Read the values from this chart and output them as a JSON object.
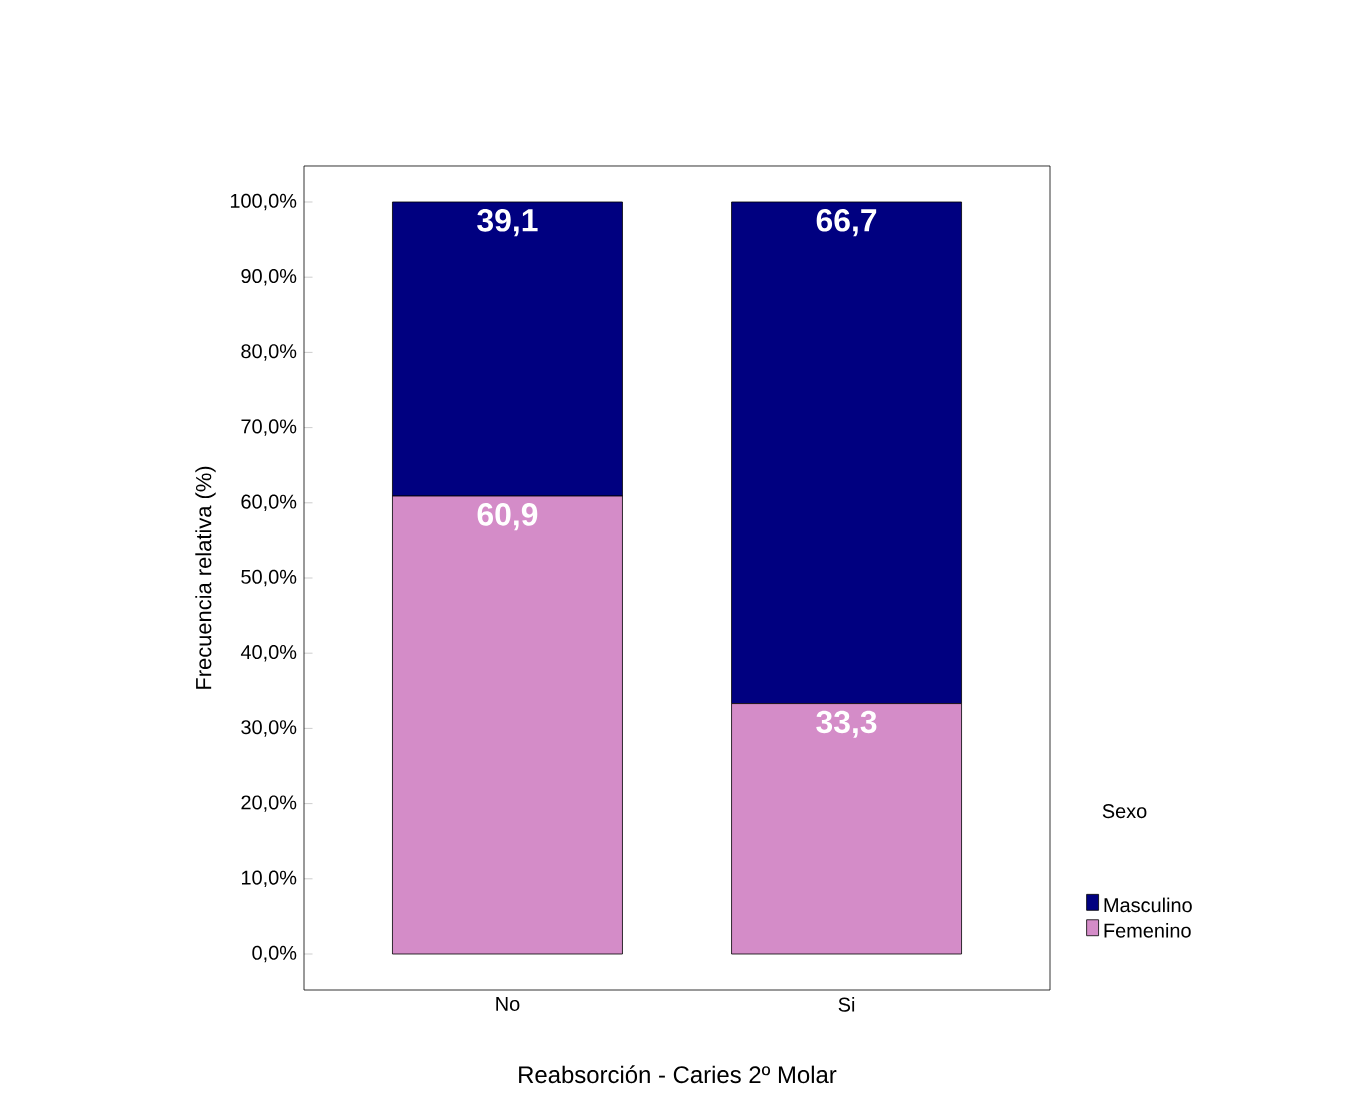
{
  "chart_data": {
    "type": "bar",
    "stacked": true,
    "xlabel": "Reabsorción - Caries 2º Molar",
    "ylabel": "Frecuencia relativa (%)",
    "legend_title": "Sexo",
    "legend": "right",
    "categories": [
      "No",
      "Si"
    ],
    "series": [
      {
        "name": "Femenino",
        "color": "#d48cc8",
        "values": [
          60.9,
          33.3
        ],
        "value_labels": [
          "60,9",
          "33,3"
        ]
      },
      {
        "name": "Masculino",
        "color": "#000080",
        "values": [
          39.1,
          66.7
        ],
        "value_labels": [
          "39,1",
          "66,7"
        ]
      }
    ],
    "ylim": [
      0,
      100
    ],
    "yticks": [
      {
        "value": 0,
        "label": "0,0%"
      },
      {
        "value": 10,
        "label": "10,0%"
      },
      {
        "value": 20,
        "label": "20,0%"
      },
      {
        "value": 30,
        "label": "30,0%"
      },
      {
        "value": 40,
        "label": "40,0%"
      },
      {
        "value": 50,
        "label": "50,0%"
      },
      {
        "value": 60,
        "label": "60,0%"
      },
      {
        "value": 70,
        "label": "70,0%"
      },
      {
        "value": 80,
        "label": "80,0%"
      },
      {
        "value": 90,
        "label": "90,0%"
      },
      {
        "value": 100,
        "label": "100,0%"
      }
    ]
  }
}
